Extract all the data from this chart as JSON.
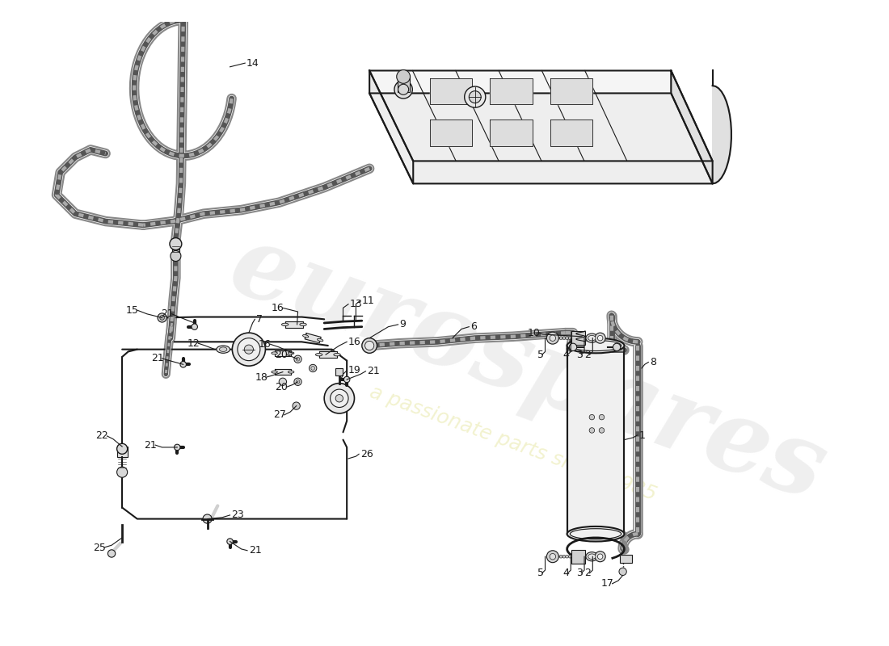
{
  "bg_color": "#ffffff",
  "lc": "#1a1a1a",
  "watermark_main": "eurospares",
  "watermark_sub": "a passionate parts since 1985",
  "figsize": [
    11.0,
    8.0
  ],
  "dpi": 100,
  "label_fs": 9
}
